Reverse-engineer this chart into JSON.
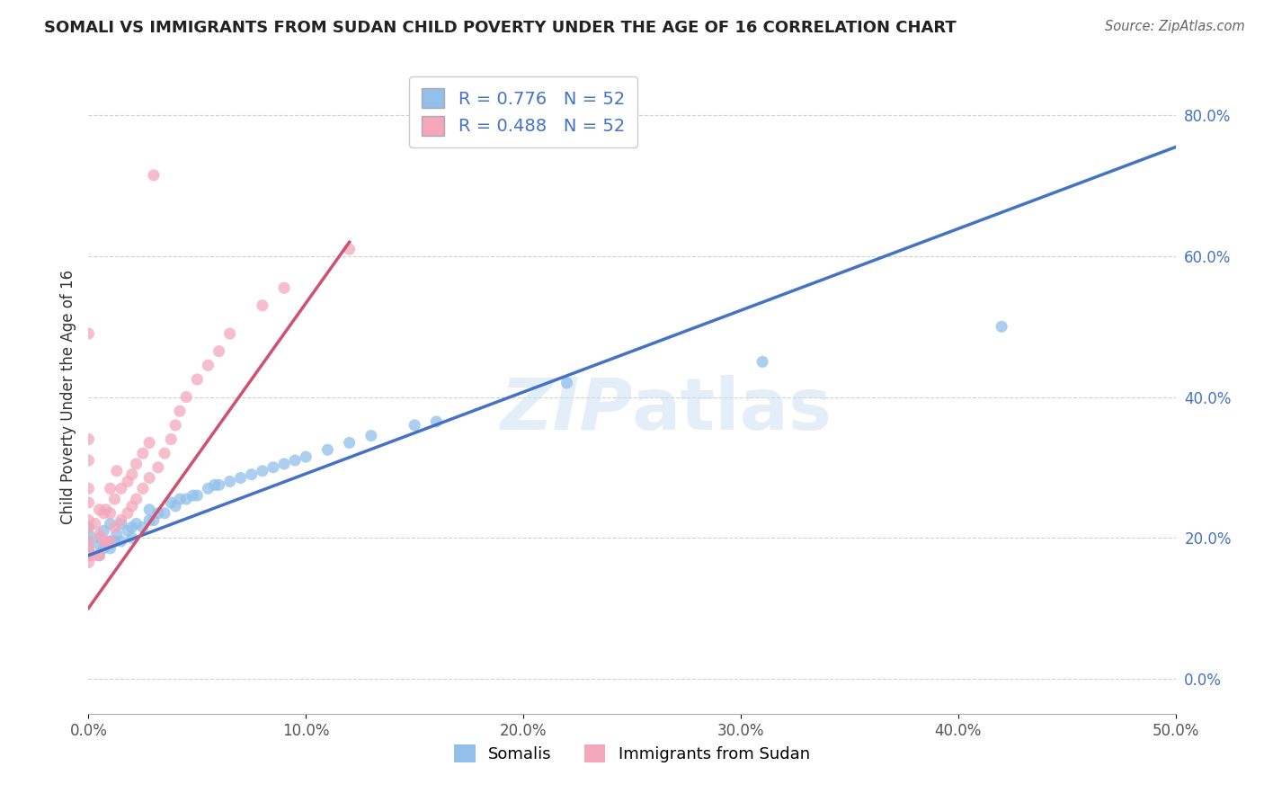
{
  "title": "SOMALI VS IMMIGRANTS FROM SUDAN CHILD POVERTY UNDER THE AGE OF 16 CORRELATION CHART",
  "source": "Source: ZipAtlas.com",
  "ylabel": "Child Poverty Under the Age of 16",
  "xlim": [
    0.0,
    0.5
  ],
  "ylim": [
    -0.05,
    0.85
  ],
  "xticks": [
    0.0,
    0.1,
    0.2,
    0.3,
    0.4,
    0.5
  ],
  "xtick_labels": [
    "0.0%",
    "10.0%",
    "20.0%",
    "30.0%",
    "40.0%",
    "50.0%"
  ],
  "yticks": [
    0.0,
    0.2,
    0.4,
    0.6,
    0.8
  ],
  "ytick_labels": [
    "0.0%",
    "20.0%",
    "40.0%",
    "60.0%",
    "80.0%"
  ],
  "R_somali": 0.776,
  "R_sudan": 0.488,
  "N": 52,
  "somali_color": "#92c0ea",
  "sudan_color": "#f4a7bb",
  "somali_line_color": "#4472c4",
  "sudan_line_color": "#d05070",
  "somali_x": [
    0.0,
    0.0,
    0.0,
    0.0,
    0.0,
    0.005,
    0.005,
    0.005,
    0.007,
    0.007,
    0.01,
    0.01,
    0.01,
    0.012,
    0.013,
    0.015,
    0.015,
    0.018,
    0.02,
    0.02,
    0.022,
    0.025,
    0.028,
    0.028,
    0.03,
    0.032,
    0.035,
    0.038,
    0.04,
    0.042,
    0.045,
    0.048,
    0.05,
    0.055,
    0.058,
    0.06,
    0.065,
    0.07,
    0.075,
    0.08,
    0.085,
    0.09,
    0.095,
    0.1,
    0.11,
    0.12,
    0.13,
    0.15,
    0.16,
    0.22,
    0.31,
    0.42
  ],
  "somali_y": [
    0.175,
    0.185,
    0.195,
    0.205,
    0.215,
    0.175,
    0.19,
    0.2,
    0.185,
    0.21,
    0.185,
    0.195,
    0.22,
    0.195,
    0.205,
    0.195,
    0.22,
    0.21,
    0.2,
    0.215,
    0.22,
    0.215,
    0.225,
    0.24,
    0.225,
    0.235,
    0.235,
    0.25,
    0.245,
    0.255,
    0.255,
    0.26,
    0.26,
    0.27,
    0.275,
    0.275,
    0.28,
    0.285,
    0.29,
    0.295,
    0.3,
    0.305,
    0.31,
    0.315,
    0.325,
    0.335,
    0.345,
    0.36,
    0.365,
    0.42,
    0.45,
    0.5
  ],
  "sudan_x": [
    0.0,
    0.0,
    0.0,
    0.0,
    0.0,
    0.0,
    0.0,
    0.0,
    0.0,
    0.0,
    0.0,
    0.003,
    0.003,
    0.005,
    0.005,
    0.005,
    0.007,
    0.007,
    0.008,
    0.008,
    0.01,
    0.01,
    0.01,
    0.012,
    0.012,
    0.013,
    0.015,
    0.015,
    0.018,
    0.018,
    0.02,
    0.02,
    0.022,
    0.022,
    0.025,
    0.025,
    0.028,
    0.028,
    0.03,
    0.032,
    0.035,
    0.038,
    0.04,
    0.042,
    0.045,
    0.05,
    0.055,
    0.06,
    0.065,
    0.08,
    0.09,
    0.12
  ],
  "sudan_y": [
    0.165,
    0.175,
    0.185,
    0.195,
    0.215,
    0.225,
    0.25,
    0.27,
    0.31,
    0.34,
    0.49,
    0.175,
    0.22,
    0.175,
    0.205,
    0.24,
    0.195,
    0.235,
    0.195,
    0.24,
    0.195,
    0.235,
    0.27,
    0.215,
    0.255,
    0.295,
    0.225,
    0.27,
    0.235,
    0.28,
    0.245,
    0.29,
    0.255,
    0.305,
    0.27,
    0.32,
    0.285,
    0.335,
    0.715,
    0.3,
    0.32,
    0.34,
    0.36,
    0.38,
    0.4,
    0.425,
    0.445,
    0.465,
    0.49,
    0.53,
    0.555,
    0.61
  ],
  "somali_line_x0": 0.0,
  "somali_line_y0": 0.175,
  "somali_line_x1": 0.5,
  "somali_line_y1": 0.755,
  "sudan_line_x0": 0.0,
  "sudan_line_y0": 0.1,
  "sudan_line_x1": 0.12,
  "sudan_line_y1": 0.62
}
